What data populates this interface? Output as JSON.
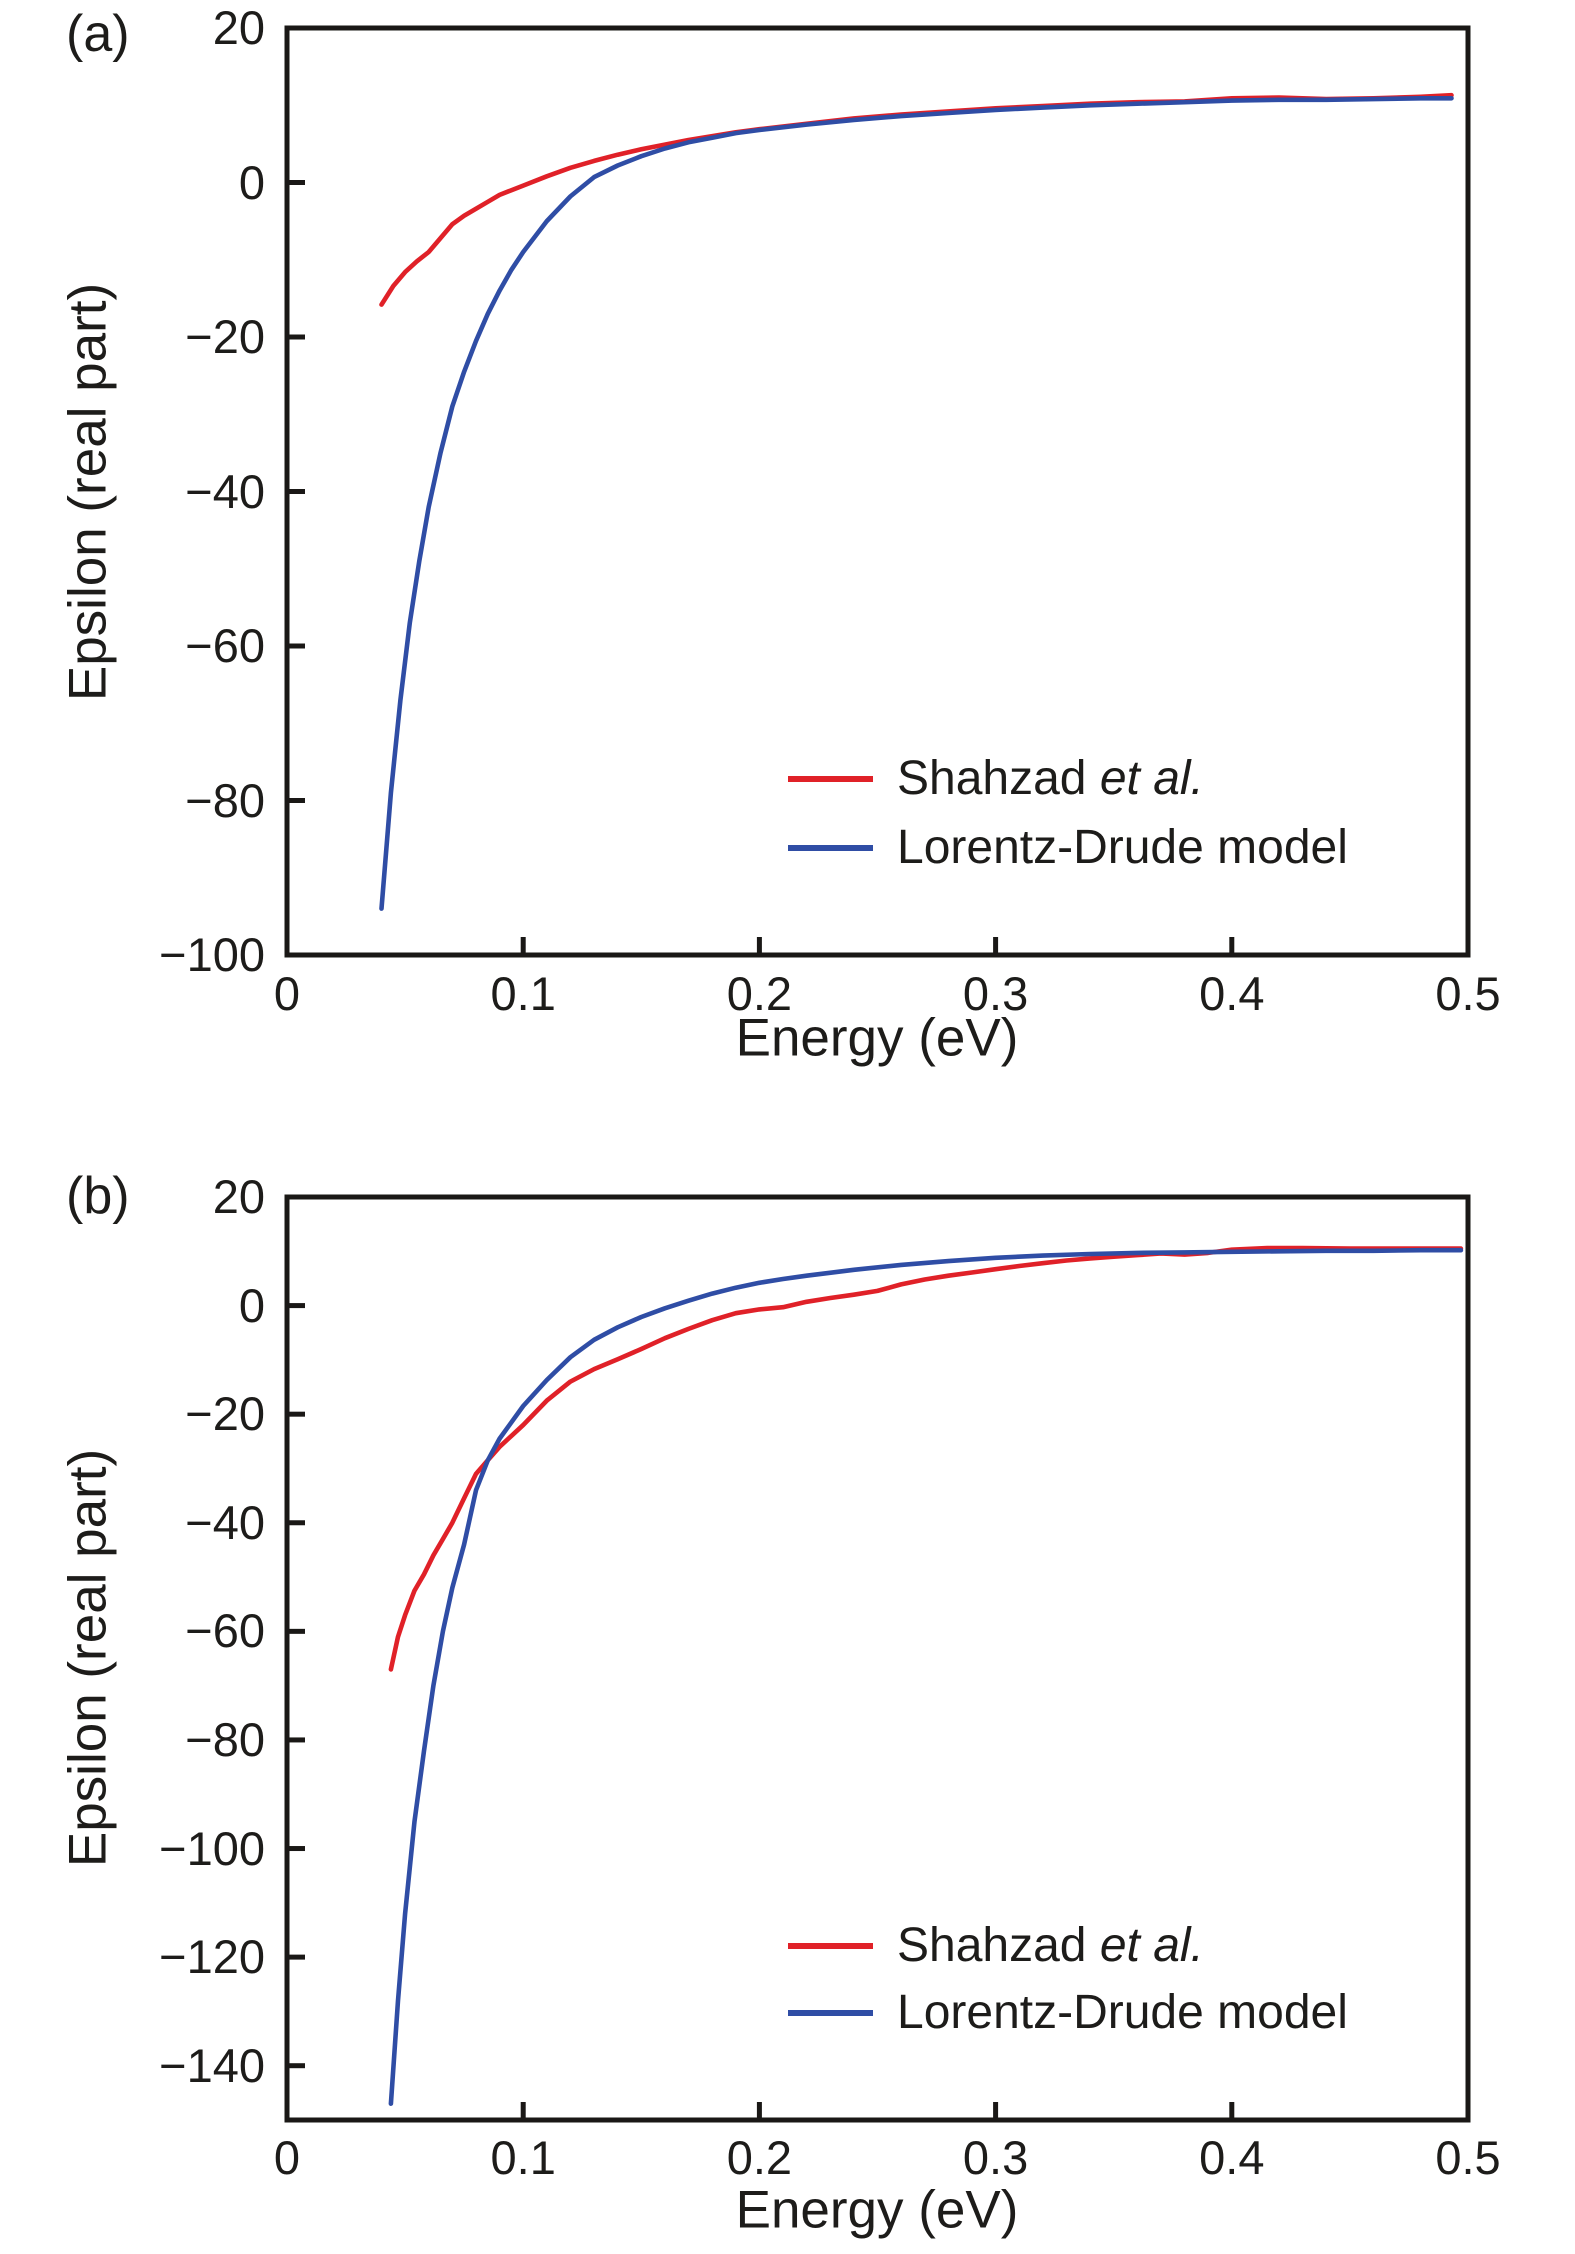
{
  "figure": {
    "background": "#ffffff",
    "text_color": "#1d1c1a",
    "axis_color": "#1a1816"
  },
  "legend": {
    "position": "lower right",
    "entries": [
      {
        "name": "Shahzad et al.",
        "regular": "Shahzad ",
        "italic": "et al.",
        "color": "#e02128"
      },
      {
        "name": "Lorentz-Drude model",
        "regular": "Lorentz-Drude model",
        "italic": "",
        "color": "#2f4da5"
      }
    ]
  },
  "chart_data": [
    {
      "type": "line",
      "panel_label": "(a)",
      "title": "",
      "xlabel": "Energy (eV)",
      "ylabel": "Epsilon (real part)",
      "xlim": [
        0,
        0.5
      ],
      "ylim": [
        -100,
        20
      ],
      "grid": false,
      "legend_position": "lower right",
      "x_ticks": [
        0,
        0.1,
        0.2,
        0.3,
        0.4,
        0.5
      ],
      "x_tick_labels": [
        "0",
        "0.1",
        "0.2",
        "0.3",
        "0.4",
        "0.5"
      ],
      "y_ticks": [
        20,
        0,
        -20,
        -40,
        -60,
        -80,
        -100
      ],
      "y_tick_labels": [
        "20",
        "0",
        "−20",
        "−40",
        "−60",
        "−80",
        "−100"
      ],
      "series": [
        {
          "name": "Shahzad et al.",
          "color": "#e02128",
          "points": [
            [
              0.04,
              -15.8
            ],
            [
              0.045,
              -13.4
            ],
            [
              0.05,
              -11.6
            ],
            [
              0.055,
              -10.2
            ],
            [
              0.06,
              -9.0
            ],
            [
              0.065,
              -7.2
            ],
            [
              0.07,
              -5.4
            ],
            [
              0.075,
              -4.3
            ],
            [
              0.08,
              -3.4
            ],
            [
              0.085,
              -2.5
            ],
            [
              0.09,
              -1.6
            ],
            [
              0.095,
              -1.0
            ],
            [
              0.1,
              -0.4
            ],
            [
              0.11,
              0.8
            ],
            [
              0.12,
              1.9
            ],
            [
              0.13,
              2.8
            ],
            [
              0.14,
              3.6
            ],
            [
              0.15,
              4.3
            ],
            [
              0.16,
              4.9
            ],
            [
              0.17,
              5.5
            ],
            [
              0.18,
              6.0
            ],
            [
              0.19,
              6.5
            ],
            [
              0.2,
              6.9
            ],
            [
              0.22,
              7.6
            ],
            [
              0.24,
              8.3
            ],
            [
              0.26,
              8.8
            ],
            [
              0.28,
              9.2
            ],
            [
              0.3,
              9.6
            ],
            [
              0.32,
              9.9
            ],
            [
              0.34,
              10.2
            ],
            [
              0.36,
              10.4
            ],
            [
              0.38,
              10.5
            ],
            [
              0.4,
              10.9
            ],
            [
              0.42,
              11.0
            ],
            [
              0.44,
              10.8
            ],
            [
              0.46,
              10.9
            ],
            [
              0.48,
              11.1
            ],
            [
              0.493,
              11.3
            ]
          ]
        },
        {
          "name": "Lorentz-Drude model",
          "color": "#2f4da5",
          "points": [
            [
              0.04,
              -94
            ],
            [
              0.044,
              -79
            ],
            [
              0.048,
              -67
            ],
            [
              0.052,
              -57
            ],
            [
              0.056,
              -49
            ],
            [
              0.06,
              -42
            ],
            [
              0.065,
              -35
            ],
            [
              0.07,
              -29
            ],
            [
              0.075,
              -24.5
            ],
            [
              0.08,
              -20.5
            ],
            [
              0.085,
              -17
            ],
            [
              0.09,
              -14
            ],
            [
              0.095,
              -11.3
            ],
            [
              0.1,
              -9.0
            ],
            [
              0.11,
              -5.0
            ],
            [
              0.12,
              -1.8
            ],
            [
              0.13,
              0.7
            ],
            [
              0.14,
              2.2
            ],
            [
              0.15,
              3.4
            ],
            [
              0.16,
              4.4
            ],
            [
              0.17,
              5.2
            ],
            [
              0.18,
              5.8
            ],
            [
              0.19,
              6.4
            ],
            [
              0.2,
              6.8
            ],
            [
              0.22,
              7.5
            ],
            [
              0.24,
              8.1
            ],
            [
              0.26,
              8.6
            ],
            [
              0.28,
              9.0
            ],
            [
              0.3,
              9.4
            ],
            [
              0.32,
              9.7
            ],
            [
              0.34,
              10.0
            ],
            [
              0.36,
              10.2
            ],
            [
              0.38,
              10.4
            ],
            [
              0.4,
              10.6
            ],
            [
              0.42,
              10.7
            ],
            [
              0.44,
              10.7
            ],
            [
              0.46,
              10.8
            ],
            [
              0.48,
              10.9
            ],
            [
              0.493,
              10.9
            ]
          ]
        }
      ]
    },
    {
      "type": "line",
      "panel_label": "(b)",
      "title": "",
      "xlabel": "Energy (eV)",
      "ylabel": "Epsilon (real part)",
      "xlim": [
        0,
        0.5
      ],
      "ylim": [
        -150,
        20
      ],
      "grid": false,
      "legend_position": "lower right",
      "x_ticks": [
        0,
        0.1,
        0.2,
        0.3,
        0.4,
        0.5
      ],
      "x_tick_labels": [
        "0",
        "0.1",
        "0.2",
        "0.3",
        "0.4",
        "0.5"
      ],
      "y_ticks": [
        20,
        0,
        -20,
        -40,
        -60,
        -80,
        -100,
        -120,
        -140
      ],
      "y_tick_labels": [
        "20",
        "0",
        "−20",
        "−40",
        "−60",
        "−80",
        "−100",
        "−120",
        "−140"
      ],
      "series": [
        {
          "name": "Shahzad et al.",
          "color": "#e02128",
          "points": [
            [
              0.044,
              -67
            ],
            [
              0.047,
              -61
            ],
            [
              0.05,
              -57
            ],
            [
              0.054,
              -52.5
            ],
            [
              0.058,
              -49.5
            ],
            [
              0.062,
              -46
            ],
            [
              0.066,
              -43
            ],
            [
              0.07,
              -40
            ],
            [
              0.075,
              -35.5
            ],
            [
              0.08,
              -31
            ],
            [
              0.085,
              -28.5
            ],
            [
              0.09,
              -26
            ],
            [
              0.095,
              -24
            ],
            [
              0.1,
              -22
            ],
            [
              0.11,
              -17.5
            ],
            [
              0.12,
              -14
            ],
            [
              0.13,
              -11.7
            ],
            [
              0.14,
              -9.9
            ],
            [
              0.15,
              -8.0
            ],
            [
              0.16,
              -6.0
            ],
            [
              0.17,
              -4.3
            ],
            [
              0.18,
              -2.7
            ],
            [
              0.19,
              -1.4
            ],
            [
              0.2,
              -0.7
            ],
            [
              0.21,
              -0.3
            ],
            [
              0.22,
              0.7
            ],
            [
              0.23,
              1.4
            ],
            [
              0.24,
              2.0
            ],
            [
              0.25,
              2.7
            ],
            [
              0.26,
              3.9
            ],
            [
              0.27,
              4.8
            ],
            [
              0.28,
              5.5
            ],
            [
              0.29,
              6.1
            ],
            [
              0.3,
              6.7
            ],
            [
              0.31,
              7.3
            ],
            [
              0.32,
              7.8
            ],
            [
              0.33,
              8.3
            ],
            [
              0.34,
              8.7
            ],
            [
              0.35,
              9.0
            ],
            [
              0.36,
              9.3
            ],
            [
              0.37,
              9.6
            ],
            [
              0.38,
              9.4
            ],
            [
              0.39,
              9.7
            ],
            [
              0.4,
              10.3
            ],
            [
              0.415,
              10.6
            ],
            [
              0.43,
              10.6
            ],
            [
              0.45,
              10.5
            ],
            [
              0.47,
              10.5
            ],
            [
              0.497,
              10.5
            ]
          ]
        },
        {
          "name": "Lorentz-Drude model",
          "color": "#2f4da5",
          "points": [
            [
              0.044,
              -147
            ],
            [
              0.047,
              -128
            ],
            [
              0.05,
              -112
            ],
            [
              0.054,
              -95
            ],
            [
              0.058,
              -82
            ],
            [
              0.062,
              -70
            ],
            [
              0.066,
              -60
            ],
            [
              0.07,
              -52
            ],
            [
              0.075,
              -44
            ],
            [
              0.08,
              -34
            ],
            [
              0.085,
              -28.5
            ],
            [
              0.09,
              -24.5
            ],
            [
              0.095,
              -21.5
            ],
            [
              0.1,
              -18.5
            ],
            [
              0.11,
              -13.7
            ],
            [
              0.12,
              -9.5
            ],
            [
              0.13,
              -6.3
            ],
            [
              0.14,
              -4.0
            ],
            [
              0.15,
              -2.1
            ],
            [
              0.16,
              -0.5
            ],
            [
              0.17,
              0.9
            ],
            [
              0.18,
              2.2
            ],
            [
              0.19,
              3.3
            ],
            [
              0.2,
              4.2
            ],
            [
              0.21,
              4.9
            ],
            [
              0.22,
              5.5
            ],
            [
              0.24,
              6.6
            ],
            [
              0.26,
              7.5
            ],
            [
              0.28,
              8.2
            ],
            [
              0.3,
              8.8
            ],
            [
              0.32,
              9.2
            ],
            [
              0.34,
              9.5
            ],
            [
              0.36,
              9.7
            ],
            [
              0.38,
              9.8
            ],
            [
              0.4,
              9.9
            ],
            [
              0.42,
              10.0
            ],
            [
              0.44,
              10.1
            ],
            [
              0.46,
              10.1
            ],
            [
              0.48,
              10.2
            ],
            [
              0.497,
              10.2
            ]
          ]
        }
      ]
    }
  ]
}
